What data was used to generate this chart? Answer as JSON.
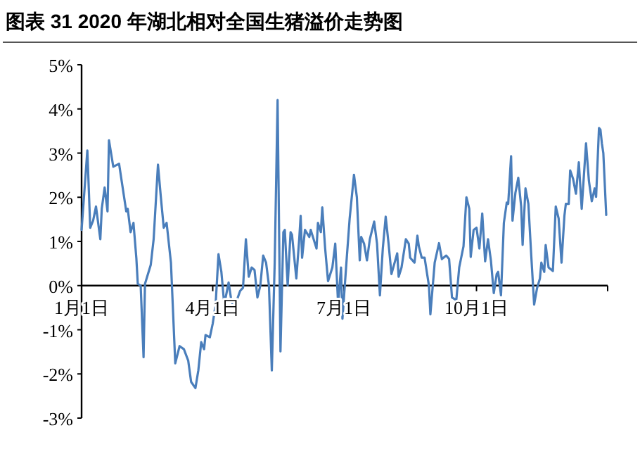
{
  "chart_data": {
    "type": "line",
    "title": "图表 31 2020 年湖北相对全国生猪溢价走势图",
    "color": "#4a7ebb",
    "xlim": [
      "2020-01-01",
      "2020-12-31"
    ],
    "xticks": [
      {
        "value": "2020-01-01",
        "label": "1月1日"
      },
      {
        "value": "2020-04-01",
        "label": "4月1日"
      },
      {
        "value": "2020-07-01",
        "label": "7月1日"
      },
      {
        "value": "2020-10-01",
        "label": "10月1日"
      },
      {
        "value": "2020-12-31",
        "label": null
      }
    ],
    "ylim": [
      -3,
      5
    ],
    "yticks": [
      {
        "value": -3,
        "label": "-3%"
      },
      {
        "value": -2,
        "label": "-2%"
      },
      {
        "value": -1,
        "label": "-1%"
      },
      {
        "value": 0,
        "label": "0%"
      },
      {
        "value": 1,
        "label": "1%"
      },
      {
        "value": 2,
        "label": "2%"
      },
      {
        "value": 3,
        "label": "3%"
      },
      {
        "value": 4,
        "label": "4%"
      },
      {
        "value": 5,
        "label": "5%"
      }
    ],
    "x": [
      "2020-01-01",
      "2020-01-05",
      "2020-01-07",
      "2020-01-09",
      "2020-01-11",
      "2020-01-14",
      "2020-01-15",
      "2020-01-17",
      "2020-01-19",
      "2020-01-20",
      "2020-01-23",
      "2020-01-27",
      "2020-02-01",
      "2020-02-02",
      "2020-02-04",
      "2020-02-06",
      "2020-02-08",
      "2020-02-09",
      "2020-02-11",
      "2020-02-13",
      "2020-02-14",
      "2020-02-18",
      "2020-02-20",
      "2020-02-23",
      "2020-02-25",
      "2020-02-27",
      "2020-02-29",
      "2020-03-03",
      "2020-03-06",
      "2020-03-09",
      "2020-03-12",
      "2020-03-15",
      "2020-03-17",
      "2020-03-20",
      "2020-03-22",
      "2020-03-24",
      "2020-03-26",
      "2020-03-27",
      "2020-03-30",
      "2020-04-01",
      "2020-04-03",
      "2020-04-05",
      "2020-04-07",
      "2020-04-09",
      "2020-04-12",
      "2020-04-14",
      "2020-04-16",
      "2020-04-20",
      "2020-04-22",
      "2020-04-24",
      "2020-04-26",
      "2020-04-28",
      "2020-04-30",
      "2020-05-02",
      "2020-05-04",
      "2020-05-06",
      "2020-05-08",
      "2020-05-10",
      "2020-05-12",
      "2020-05-14",
      "2020-05-16",
      "2020-05-18",
      "2020-05-20",
      "2020-05-21",
      "2020-05-23",
      "2020-05-25",
      "2020-05-26",
      "2020-05-29",
      "2020-05-31",
      "2020-06-01",
      "2020-06-02",
      "2020-06-04",
      "2020-06-07",
      "2020-06-08",
      "2020-06-10",
      "2020-06-12",
      "2020-06-13",
      "2020-06-15",
      "2020-06-16",
      "2020-06-18",
      "2020-06-20",
      "2020-06-23",
      "2020-06-25",
      "2020-06-27",
      "2020-06-29",
      "2020-06-30",
      "2020-07-03",
      "2020-07-05",
      "2020-07-08",
      "2020-07-10",
      "2020-07-12",
      "2020-07-13",
      "2020-07-15",
      "2020-07-17",
      "2020-07-19",
      "2020-07-22",
      "2020-07-24",
      "2020-07-26",
      "2020-07-28",
      "2020-07-30",
      "2020-08-01",
      "2020-08-03",
      "2020-08-07",
      "2020-08-08",
      "2020-08-10",
      "2020-08-13",
      "2020-08-15",
      "2020-08-16",
      "2020-08-19",
      "2020-08-21",
      "2020-08-22",
      "2020-08-24",
      "2020-08-26",
      "2020-08-29",
      "2020-08-30",
      "2020-09-02",
      "2020-09-05",
      "2020-09-07",
      "2020-09-10",
      "2020-09-12",
      "2020-09-14",
      "2020-09-17",
      "2020-09-19",
      "2020-09-20",
      "2020-09-22",
      "2020-09-24",
      "2020-09-26",
      "2020-09-27",
      "2020-09-29",
      "2020-10-01",
      "2020-10-03",
      "2020-10-05",
      "2020-10-07",
      "2020-10-09",
      "2020-10-11",
      "2020-10-13",
      "2020-10-15",
      "2020-10-16",
      "2020-10-18",
      "2020-10-20",
      "2020-10-22",
      "2020-10-23",
      "2020-10-25",
      "2020-10-26",
      "2020-10-28",
      "2020-10-30",
      "2020-11-01",
      "2020-11-02",
      "2020-11-04",
      "2020-11-06",
      "2020-11-08",
      "2020-11-10",
      "2020-11-12",
      "2020-11-14",
      "2020-11-15",
      "2020-11-17",
      "2020-11-18",
      "2020-11-20",
      "2020-11-23",
      "2020-11-25",
      "2020-11-27",
      "2020-11-29",
      "2020-12-01",
      "2020-12-02",
      "2020-12-04",
      "2020-12-05",
      "2020-12-07",
      "2020-12-09",
      "2020-12-11",
      "2020-12-13",
      "2020-12-16",
      "2020-12-18",
      "2020-12-20",
      "2020-12-22",
      "2020-12-23",
      "2020-12-25",
      "2020-12-26",
      "2020-12-27",
      "2020-12-28",
      "2020-12-30"
    ],
    "values": [
      1.26,
      3.06,
      1.31,
      1.47,
      1.79,
      1.05,
      1.74,
      2.22,
      1.68,
      3.29,
      2.69,
      2.76,
      1.68,
      1.74,
      1.21,
      1.42,
      0.62,
      0.04,
      0.0,
      -1.62,
      0.04,
      0.47,
      1.05,
      2.74,
      2.0,
      1.31,
      1.42,
      0.52,
      -1.76,
      -1.37,
      -1.44,
      -1.7,
      -2.18,
      -2.32,
      -1.92,
      -1.28,
      -1.44,
      -1.12,
      -1.17,
      -0.86,
      -0.43,
      0.71,
      0.31,
      -0.43,
      0.07,
      -0.36,
      -0.49,
      -0.12,
      -0.05,
      1.05,
      0.2,
      0.41,
      0.35,
      -0.27,
      0.0,
      0.68,
      0.52,
      0.0,
      -1.92,
      0.52,
      4.2,
      -1.49,
      1.21,
      1.26,
      0.0,
      1.21,
      1.15,
      0.16,
      1.05,
      1.58,
      0.63,
      1.26,
      1.1,
      1.26,
      1.05,
      0.84,
      1.42,
      1.21,
      1.77,
      0.84,
      0.1,
      0.41,
      0.95,
      -0.43,
      0.41,
      -0.75,
      0.63,
      1.52,
      2.51,
      2.0,
      0.57,
      1.1,
      0.95,
      0.57,
      1.05,
      1.45,
      0.95,
      -0.22,
      0.84,
      1.56,
      0.95,
      0.26,
      0.73,
      0.2,
      0.41,
      1.05,
      0.95,
      0.63,
      0.52,
      1.13,
      0.89,
      0.63,
      0.63,
      0.0,
      -0.65,
      0.52,
      0.96,
      0.6,
      0.68,
      0.6,
      -0.27,
      -0.33,
      0.41,
      0.57,
      0.89,
      2.0,
      1.74,
      0.65,
      1.26,
      1.31,
      0.84,
      1.63,
      0.55,
      1.05,
      0.57,
      -0.17,
      0.26,
      0.31,
      -0.22,
      1.42,
      1.88,
      1.85,
      2.93,
      1.47,
      2.1,
      2.44,
      1.79,
      0.92,
      2.2,
      1.85,
      0.68,
      -0.43,
      -0.06,
      0.16,
      0.52,
      0.31,
      0.92,
      0.41,
      0.33,
      1.79,
      1.52,
      0.52,
      1.58,
      1.85,
      1.85,
      2.61,
      2.42,
      2.08,
      2.79,
      1.74,
      3.22,
      2.37,
      1.91,
      2.2,
      2.01,
      3.57,
      3.53,
      3.22,
      3.0,
      1.6
    ]
  }
}
